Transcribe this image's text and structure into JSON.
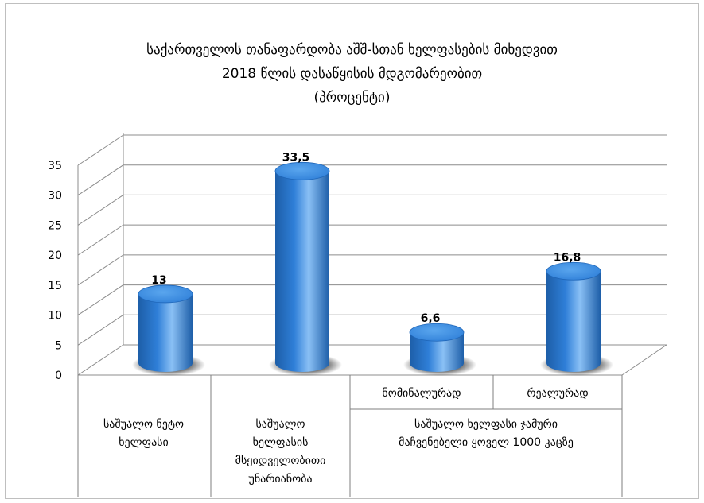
{
  "chart_data": {
    "type": "bar",
    "title_lines": [
      "საქართველოს თანაფარდობა აშშ-სთან ხელფასების მიხედვით",
      "2018 წლის დასაწყისის მდგომარეობით",
      "(პროცენტი)"
    ],
    "categories": [
      "საშუალო ნეტო ხელფასი",
      "საშუალო ხელფასის მსყიდველობითი უნარიანობა",
      "ნომინალურად",
      "რეალურად"
    ],
    "category_label_lines": [
      [
        "საშუალო ნეტო",
        "ხელფასი"
      ],
      [
        "საშუალო",
        "ხელფასის",
        "მსყიდველობითი",
        "უნარიანობა"
      ],
      [
        "ნომინალურად"
      ],
      [
        "რეალურად"
      ]
    ],
    "group_label_lines": [
      "საშუალო ხელფასი ჯამური",
      "მაჩვენებელი  ყოველ 1000 კაცზე"
    ],
    "values": [
      13,
      33.5,
      6.6,
      16.8
    ],
    "data_labels": [
      "13",
      "33,5",
      "6,6",
      "16,8"
    ],
    "ylim": [
      0,
      35
    ],
    "yticks": [
      "0",
      "5",
      "10",
      "15",
      "20",
      "25",
      "30",
      "35"
    ],
    "grid": true,
    "bar_style": "3d-cylinder",
    "colors": {
      "bar": "#2f7fd8",
      "bar_dark": "#1d5ea8",
      "bar_light": "#8ac0f5",
      "grid": "#8c8c8c"
    }
  }
}
